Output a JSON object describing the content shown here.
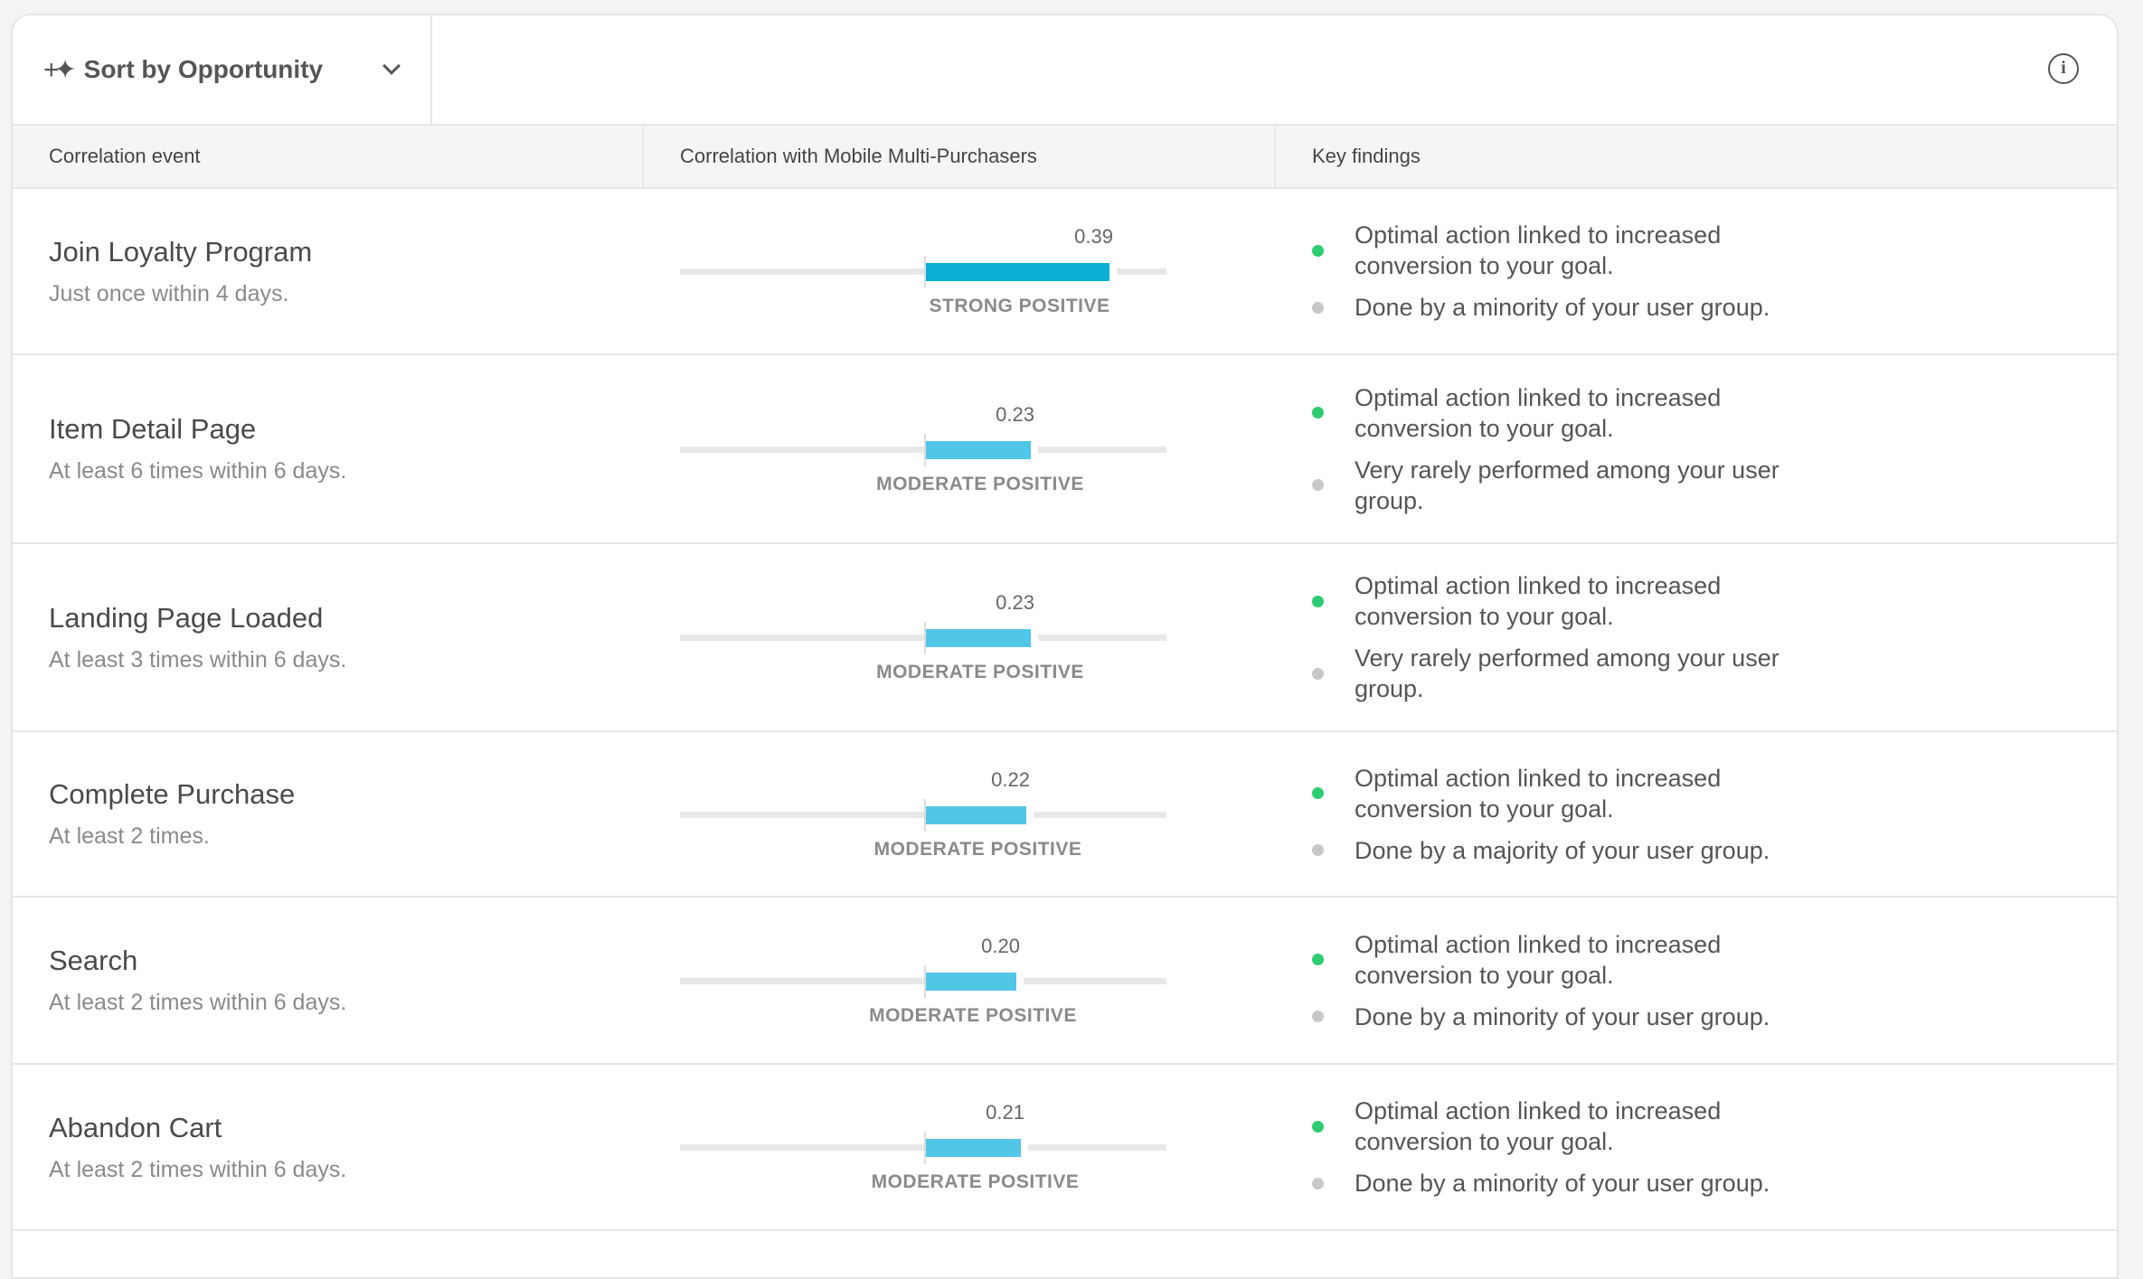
{
  "toolbar": {
    "sort_label": "Sort by Opportunity",
    "sort_icon": "sparkle-icon",
    "info_icon": "info-icon"
  },
  "columns": [
    "Correlation event",
    "Correlation with Mobile Multi-Purchasers",
    "Key findings"
  ],
  "colors": {
    "strong": "#0aaed6",
    "moderate": "#52c6e6",
    "positive_dot": "#2ecc71",
    "neutral_dot": "#c8c8c8"
  },
  "rows": [
    {
      "title": "Join Loyalty Program",
      "subtitle": "Just once within 4 days.",
      "value": 0.39,
      "value_label": "0.39",
      "strength": "STRONG POSITIVE",
      "kind": "strong",
      "findings": [
        {
          "text": "Optimal action linked to increased conversion to your goal.",
          "type": "positive"
        },
        {
          "text": "Done by a minority of your user group.",
          "type": "neutral"
        }
      ]
    },
    {
      "title": "Item Detail Page",
      "subtitle": "At least 6 times within 6 days.",
      "value": 0.23,
      "value_label": "0.23",
      "strength": "MODERATE POSITIVE",
      "kind": "moderate",
      "findings": [
        {
          "text": "Optimal action linked to increased conversion to your goal.",
          "type": "positive"
        },
        {
          "text": "Very rarely performed among your user group.",
          "type": "neutral"
        }
      ]
    },
    {
      "title": "Landing Page Loaded",
      "subtitle": "At least 3 times within 6 days.",
      "value": 0.23,
      "value_label": "0.23",
      "strength": "MODERATE POSITIVE",
      "kind": "moderate",
      "findings": [
        {
          "text": "Optimal action linked to increased conversion to your goal.",
          "type": "positive"
        },
        {
          "text": "Very rarely performed among your user group.",
          "type": "neutral"
        }
      ]
    },
    {
      "title": "Complete Purchase",
      "subtitle": "At least 2 times.",
      "value": 0.22,
      "value_label": "0.22",
      "strength": "MODERATE POSITIVE",
      "kind": "moderate",
      "findings": [
        {
          "text": "Optimal action linked to increased conversion to your goal.",
          "type": "positive"
        },
        {
          "text": "Done by a majority of your user group.",
          "type": "neutral"
        }
      ]
    },
    {
      "title": "Search",
      "subtitle": "At least 2 times within 6 days.",
      "value": 0.2,
      "value_label": "0.20",
      "strength": "MODERATE POSITIVE",
      "kind": "moderate",
      "findings": [
        {
          "text": "Optimal action linked to increased conversion to your goal.",
          "type": "positive"
        },
        {
          "text": "Done by a minority of your user group.",
          "type": "neutral"
        }
      ]
    },
    {
      "title": "Abandon Cart",
      "subtitle": "At least 2 times within 6 days.",
      "value": 0.21,
      "value_label": "0.21",
      "strength": "MODERATE POSITIVE",
      "kind": "moderate",
      "findings": [
        {
          "text": "Optimal action linked to increased conversion to your goal.",
          "type": "positive"
        },
        {
          "text": "Done by a minority of your user group.",
          "type": "neutral"
        }
      ]
    }
  ]
}
